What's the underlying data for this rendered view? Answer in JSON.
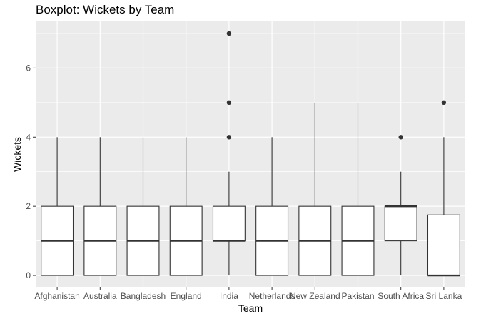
{
  "chart_data": {
    "type": "boxplot",
    "title": "Boxplot: Wickets by Team",
    "xlabel": "Team",
    "ylabel": "Wickets",
    "categories": [
      "Afghanistan",
      "Australia",
      "Bangladesh",
      "England",
      "India",
      "Netherlands",
      "New Zealand",
      "Pakistan",
      "South Africa",
      "Sri Lanka"
    ],
    "boxes": [
      {
        "team": "Afghanistan",
        "min": 0,
        "q1": 0,
        "median": 1,
        "q3": 2,
        "max": 4,
        "outliers": []
      },
      {
        "team": "Australia",
        "min": 0,
        "q1": 0,
        "median": 1,
        "q3": 2,
        "max": 4,
        "outliers": []
      },
      {
        "team": "Bangladesh",
        "min": 0,
        "q1": 0,
        "median": 1,
        "q3": 2,
        "max": 4,
        "outliers": []
      },
      {
        "team": "England",
        "min": 0,
        "q1": 0,
        "median": 1,
        "q3": 2,
        "max": 4,
        "outliers": []
      },
      {
        "team": "India",
        "min": 0,
        "q1": 1,
        "median": 1,
        "q3": 2,
        "max": 3,
        "outliers": [
          4,
          5,
          7
        ]
      },
      {
        "team": "Netherlands",
        "min": 0,
        "q1": 0,
        "median": 1,
        "q3": 2,
        "max": 4,
        "outliers": []
      },
      {
        "team": "New Zealand",
        "min": 0,
        "q1": 0,
        "median": 1,
        "q3": 2,
        "max": 5,
        "outliers": []
      },
      {
        "team": "Pakistan",
        "min": 0,
        "q1": 0,
        "median": 1,
        "q3": 2,
        "max": 5,
        "outliers": []
      },
      {
        "team": "South Africa",
        "min": 0,
        "q1": 1,
        "median": 2,
        "q3": 2,
        "max": 3,
        "outliers": [
          4
        ]
      },
      {
        "team": "Sri Lanka",
        "min": 0,
        "q1": 0,
        "median": 0,
        "q3": 1.75,
        "max": 4,
        "outliers": [
          5
        ]
      }
    ],
    "yticks": [
      0,
      2,
      4,
      6
    ],
    "ylim": [
      -0.35,
      7.35
    ],
    "grid": true,
    "panel_background": "#ebebeb",
    "grid_color": "#ffffff",
    "box_fill": "#ffffff",
    "line_color": "#333333"
  }
}
